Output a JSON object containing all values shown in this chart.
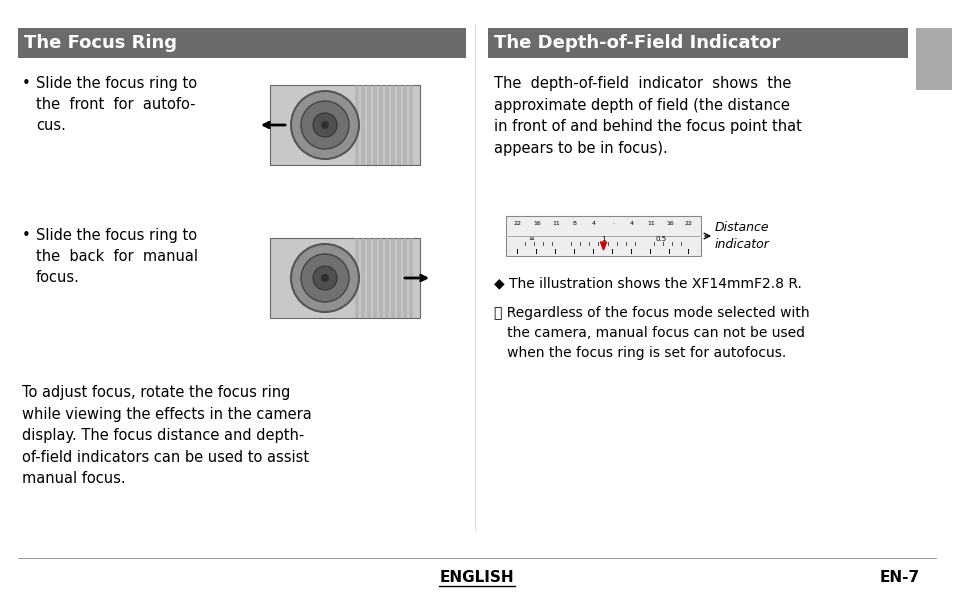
{
  "bg_color": "#ffffff",
  "header_color": "#6b6b6b",
  "header_text_color": "#ffffff",
  "left_title": "The Focus Ring",
  "right_title": "The Depth-of-Field Indicator",
  "left_bullet1": "Slide the focus ring to\nthe  front  for  autofo-\ncus.",
  "left_bullet2": "Slide the focus ring to\nthe  back  for  manual\nfocus.",
  "left_body": "To adjust focus, rotate the focus ring\nwhile viewing the effects in the camera\ndisplay. The focus distance and depth-\nof-field indicators can be used to assist\nmanual focus.",
  "right_body": "The  depth-of-field  indicator  shows  the\napproximate depth of field (the distance\nin front of and behind the focus point that\nappears to be in focus).",
  "right_note1": "◆ The illustration shows the XF14mmF2.8 R.",
  "right_note2": "ⓘ Regardless of the focus mode selected with\n   the camera, manual focus can not be used\n   when the focus ring is set for autofocus.",
  "distance_indicator_label": "Distance\nindicator",
  "footer_left": "ENGLISH",
  "footer_right": "EN-7",
  "title_fontsize": 13,
  "body_fontsize": 10.5,
  "note_fontsize": 10,
  "footer_fontsize": 11,
  "gray_square_color": "#aaaaaa"
}
